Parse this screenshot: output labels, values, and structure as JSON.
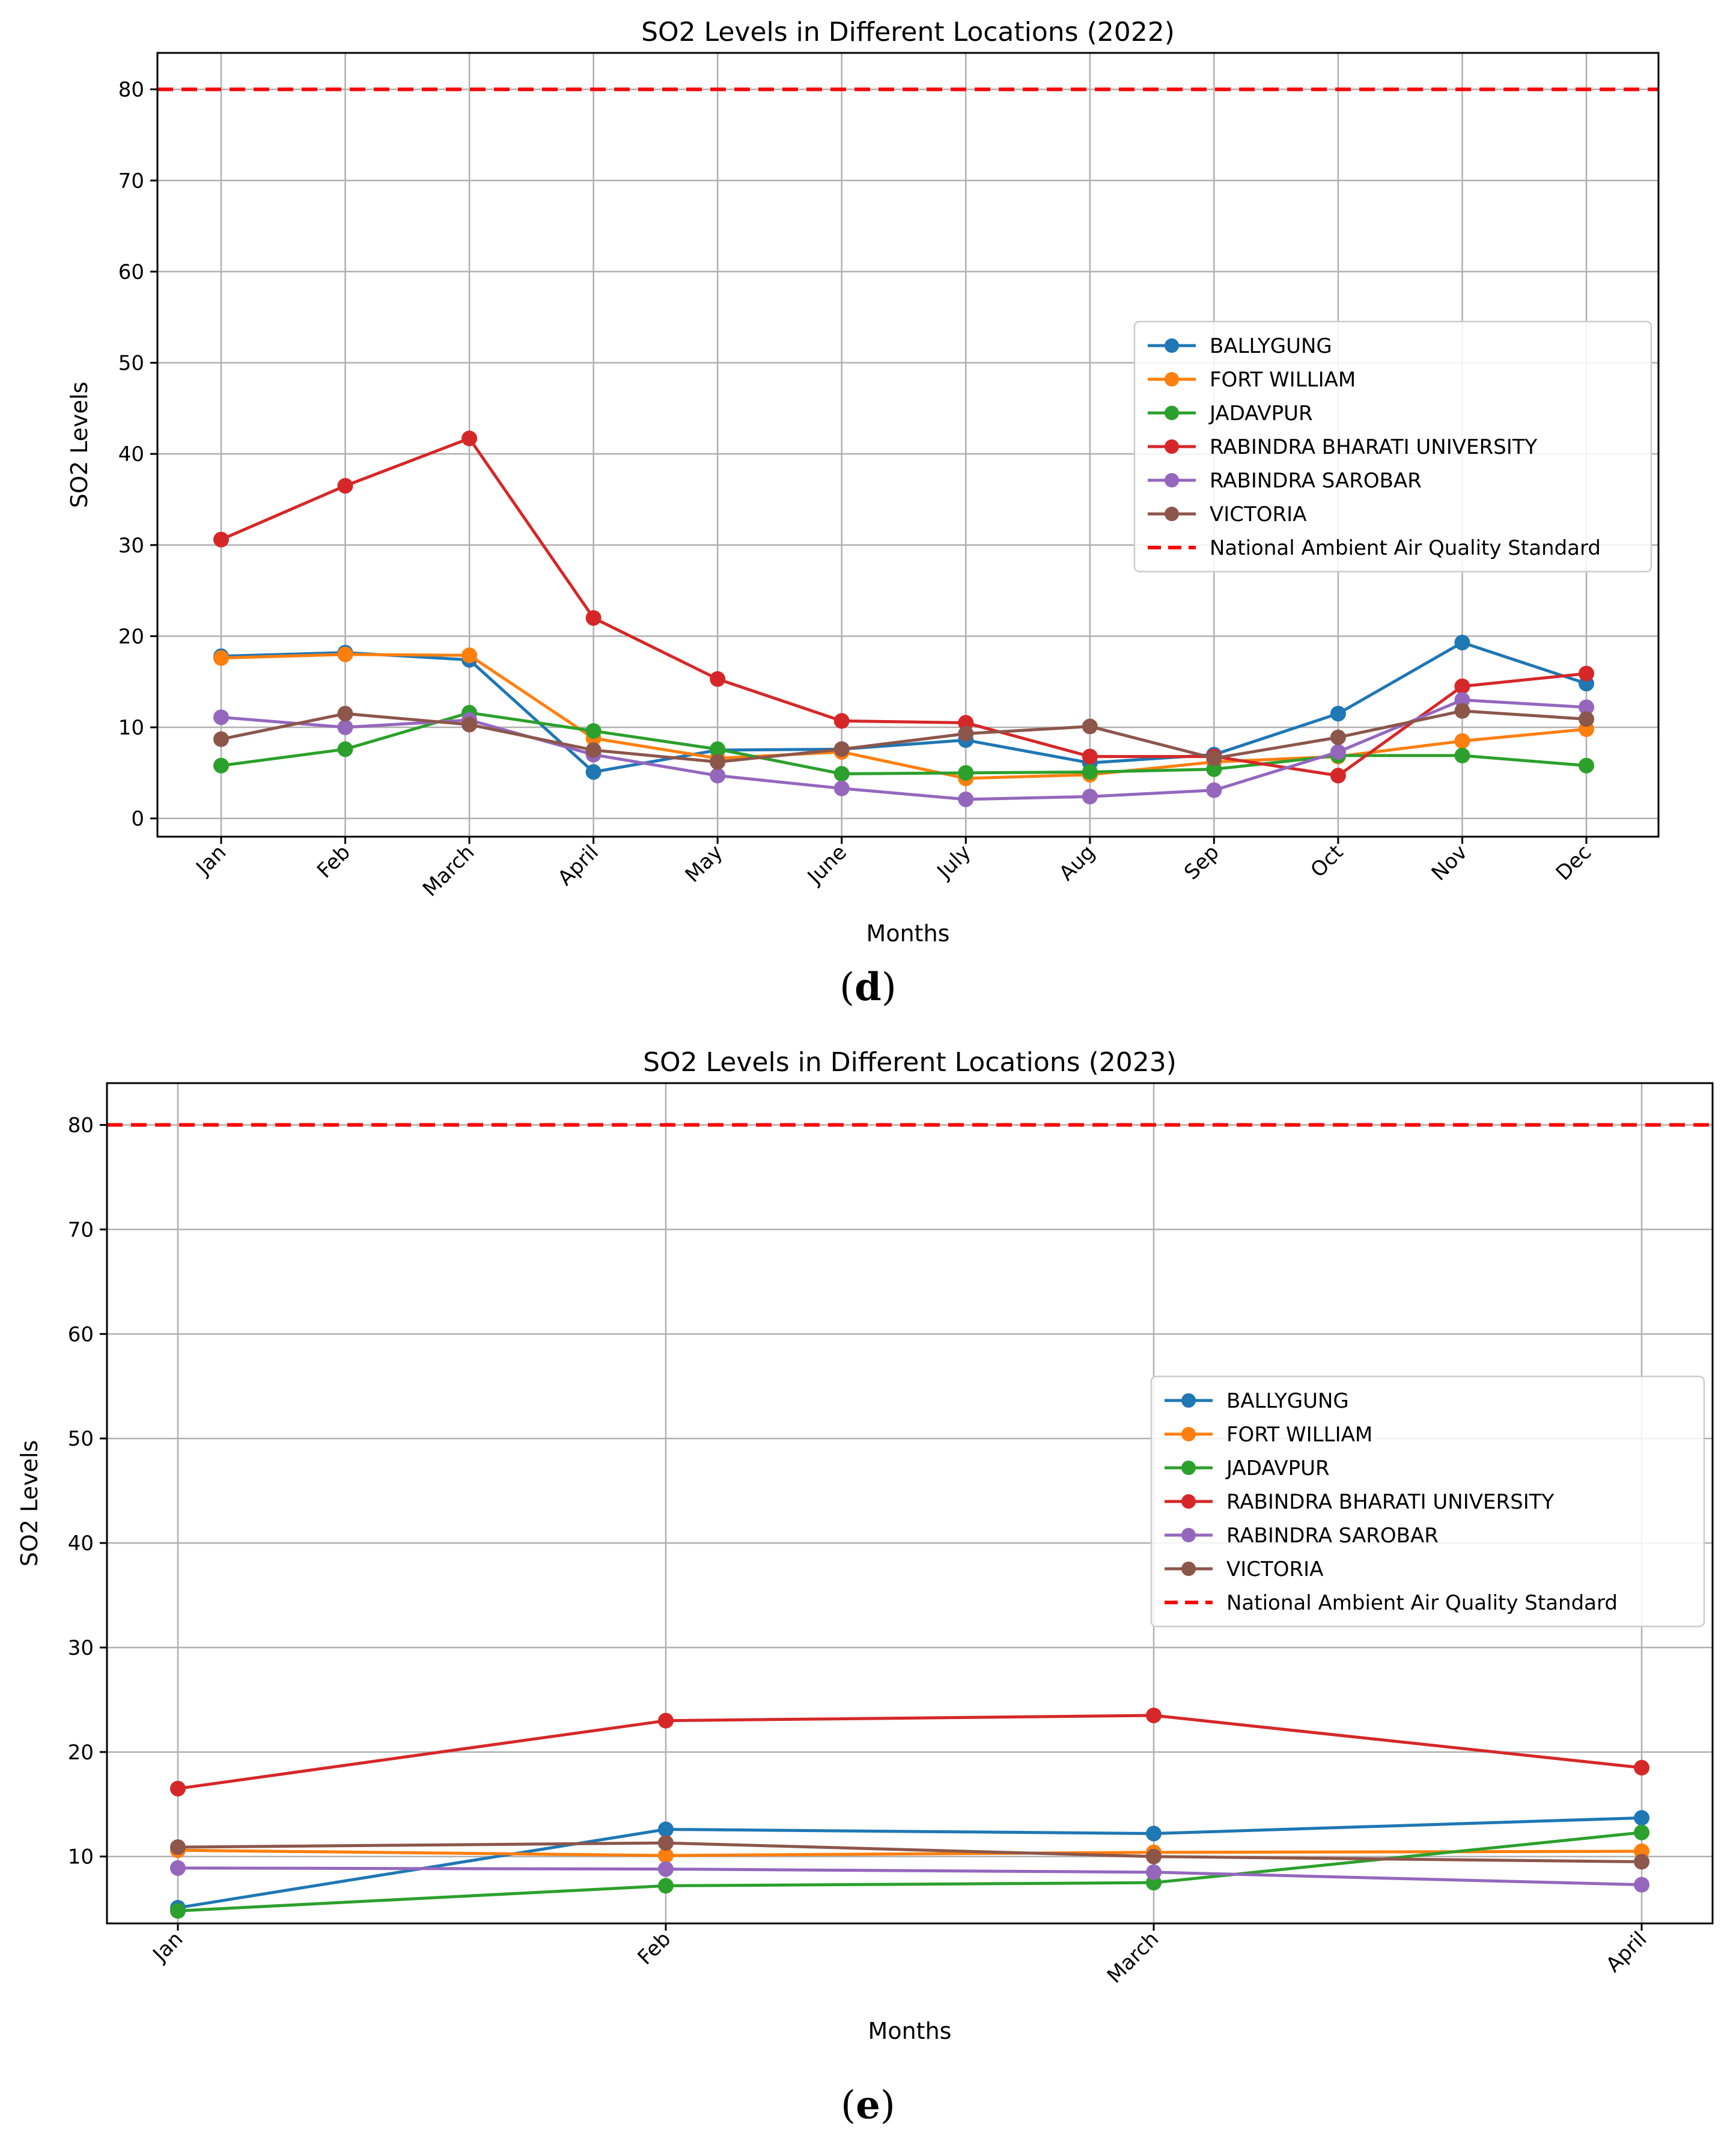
{
  "chart_data": [
    {
      "type": "line",
      "panel_label": "d",
      "title": "SO2 Levels in Different Locations (2022)",
      "xlabel": "Months",
      "ylabel": "SO2 Levels",
      "categories": [
        "Jan",
        "Feb",
        "March",
        "April",
        "May",
        "June",
        "July",
        "Aug",
        "Sep",
        "Oct",
        "Nov",
        "Dec"
      ],
      "ylim": [
        -2,
        84
      ],
      "yticks": [
        0,
        10,
        20,
        30,
        40,
        50,
        60,
        70,
        80
      ],
      "grid": true,
      "legend_position": "center-right",
      "series": [
        {
          "name": "BALLYGUNG",
          "color": "#1f77b4",
          "values": [
            17.8,
            18.2,
            17.4,
            5.1,
            7.5,
            7.6,
            8.6,
            6.1,
            7.0,
            11.5,
            19.3,
            14.8
          ]
        },
        {
          "name": "FORT WILLIAM",
          "color": "#ff7f0e",
          "values": [
            17.6,
            18.0,
            17.9,
            8.8,
            6.6,
            7.3,
            4.4,
            4.8,
            6.2,
            6.8,
            8.5,
            9.8
          ]
        },
        {
          "name": "JADAVPUR",
          "color": "#2ca02c",
          "values": [
            5.8,
            7.6,
            11.6,
            9.6,
            7.6,
            4.9,
            5.0,
            5.1,
            5.4,
            6.9,
            6.9,
            5.8
          ]
        },
        {
          "name": "RABINDRA BHARATI UNIVERSITY",
          "color": "#d62728",
          "values": [
            30.6,
            36.5,
            41.7,
            22.0,
            15.3,
            10.7,
            10.5,
            6.8,
            6.8,
            4.7,
            14.5,
            15.9
          ]
        },
        {
          "name": "RABINDRA SAROBAR",
          "color": "#9467bd",
          "values": [
            11.1,
            10.0,
            10.8,
            7.0,
            4.7,
            3.3,
            2.1,
            2.4,
            3.1,
            7.3,
            13.0,
            12.2
          ]
        },
        {
          "name": "VICTORIA",
          "color": "#8c564b",
          "values": [
            8.7,
            11.5,
            10.3,
            7.5,
            6.2,
            7.6,
            9.3,
            10.1,
            6.6,
            8.9,
            11.8,
            10.9
          ]
        }
      ],
      "reference_line": {
        "name": "National Ambient Air Quality Standard",
        "value": 80,
        "color": "#ff0000"
      }
    },
    {
      "type": "line",
      "panel_label": "e",
      "title": "SO2 Levels in Different Locations (2023)",
      "xlabel": "Months",
      "ylabel": "SO2 Levels",
      "categories": [
        "Jan",
        "Feb",
        "March",
        "April"
      ],
      "ylim": [
        3.6,
        84
      ],
      "yticks": [
        10,
        20,
        30,
        40,
        50,
        60,
        70,
        80
      ],
      "grid": true,
      "legend_position": "center-right",
      "series": [
        {
          "name": "BALLYGUNG",
          "color": "#1f77b4",
          "values": [
            5.1,
            12.6,
            12.2,
            13.7
          ]
        },
        {
          "name": "FORT WILLIAM",
          "color": "#ff7f0e",
          "values": [
            10.6,
            10.1,
            10.4,
            10.5
          ]
        },
        {
          "name": "JADAVPUR",
          "color": "#2ca02c",
          "values": [
            4.8,
            7.2,
            7.5,
            12.3
          ]
        },
        {
          "name": "RABINDRA BHARATI UNIVERSITY",
          "color": "#d62728",
          "values": [
            16.5,
            23.0,
            23.5,
            18.5
          ]
        },
        {
          "name": "RABINDRA SAROBAR",
          "color": "#9467bd",
          "values": [
            8.9,
            8.8,
            8.5,
            7.3
          ]
        },
        {
          "name": "VICTORIA",
          "color": "#8c564b",
          "values": [
            10.9,
            11.3,
            10.0,
            9.5
          ]
        }
      ],
      "reference_line": {
        "name": "National Ambient Air Quality Standard",
        "value": 80,
        "color": "#ff0000"
      }
    }
  ],
  "captions": {
    "d": "d",
    "e": "e"
  }
}
